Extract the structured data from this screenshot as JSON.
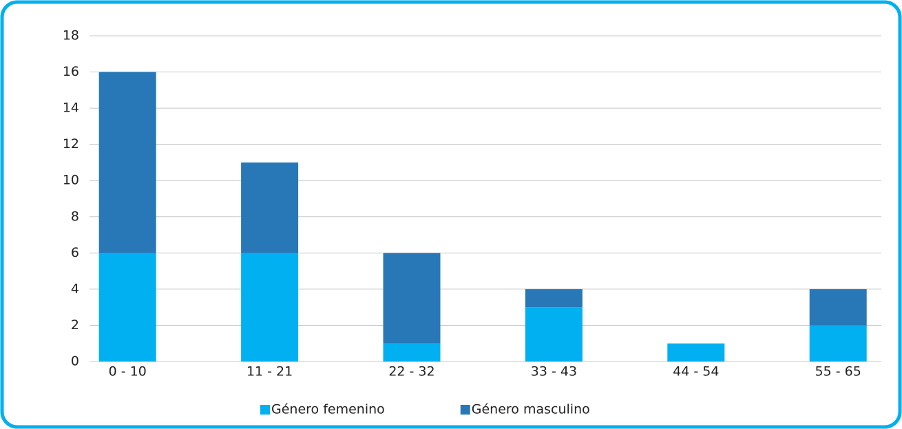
{
  "chart_data": {
    "type": "bar",
    "stacked": true,
    "categories": [
      "0 - 10",
      "11 - 21",
      "22 - 32",
      "33 - 43",
      "44 - 54",
      "55 - 65"
    ],
    "series": [
      {
        "name": "Género femenino",
        "color": "#00b0f0",
        "values": [
          6,
          6,
          1,
          3,
          1,
          2
        ]
      },
      {
        "name": "Género masculino",
        "color": "#2878b8",
        "values": [
          10,
          5,
          5,
          1,
          0,
          2
        ]
      }
    ],
    "ylim": [
      0,
      18
    ],
    "yticks": [
      0,
      2,
      4,
      6,
      8,
      10,
      12,
      14,
      16,
      18
    ],
    "grid": true,
    "legend": "bottom"
  }
}
